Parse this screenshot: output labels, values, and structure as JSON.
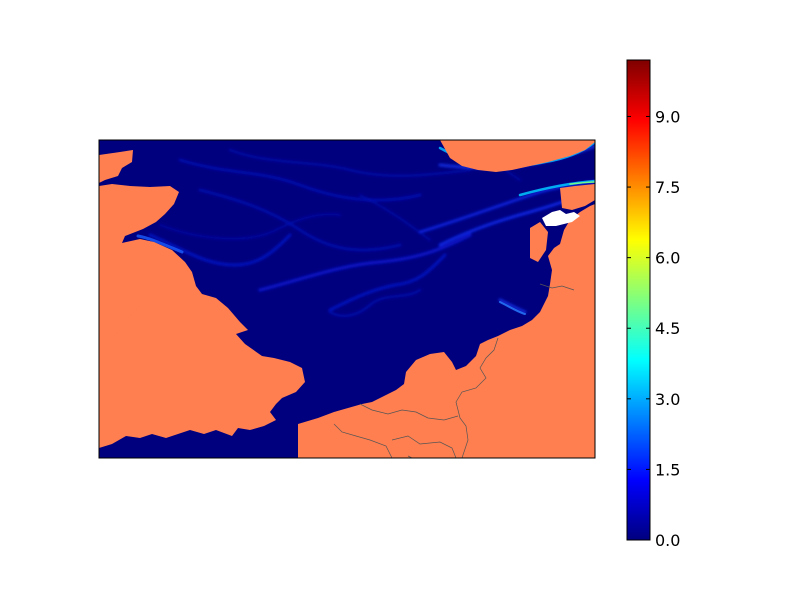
{
  "colors": {
    "land": "#ff7f50",
    "sea": "#00007f",
    "frame": "#000000",
    "border": "#444444",
    "colorbar_stops": [
      "#00007f",
      "#0000ff",
      "#007fff",
      "#00ffff",
      "#7fff7f",
      "#ffff00",
      "#ff7f00",
      "#ff0000",
      "#7f0000"
    ]
  },
  "colormap": "jet",
  "colorbar": {
    "min": 0.0,
    "max": 10.2,
    "orientation": "vertical",
    "ticks": [
      {
        "value": 0.0,
        "label": "0.0"
      },
      {
        "value": 1.5,
        "label": "1.5"
      },
      {
        "value": 3.0,
        "label": "3.0"
      },
      {
        "value": 4.5,
        "label": "4.5"
      },
      {
        "value": 6.0,
        "label": "6.0"
      },
      {
        "value": 7.5,
        "label": "7.5"
      },
      {
        "value": 9.0,
        "label": "9.0"
      }
    ]
  }
}
